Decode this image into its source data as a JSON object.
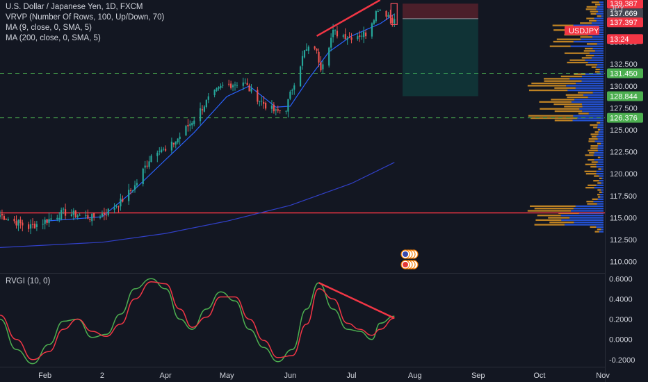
{
  "header": {
    "title": "U.S. Dollar / Japanese Yen, 1D, FXCM",
    "indicators": [
      "VRVP (Number Of Rows, 100, Up/Down, 70)",
      "MA (9, close, 0, SMA, 5)",
      "MA (200, close, 0, SMA, 5)"
    ],
    "oscillator": "RVGI (10, 0)",
    "currency": "JPY"
  },
  "colors": {
    "background": "#131722",
    "up_candle": "#26a69a",
    "down_candle": "#ef5350",
    "ma9": "#2962ff",
    "ma200": "#3140c8",
    "support": "#4caf50",
    "resistance": "#f23645",
    "rvgi": "#4caf50",
    "rvgi_signal": "#f23645",
    "volume_up": "#2962ff",
    "volume_down": "#f9a825"
  },
  "badges": [
    {
      "label": "139.387",
      "color": "#f23645"
    },
    {
      "label": "137.669",
      "color": "#434651"
    },
    {
      "label": "137.397",
      "color": "#f23645"
    },
    {
      "label": "USDJPY",
      "color": "#f23645"
    },
    {
      "label": "13:24",
      "color": "#f23645"
    },
    {
      "label": "131.450",
      "color": "#4caf50"
    },
    {
      "label": "128.844",
      "color": "#4caf50"
    },
    {
      "label": "126.376",
      "color": "#4caf50"
    }
  ],
  "chart_data": [
    {
      "type": "candlestick",
      "title": "U.S. Dollar / Japanese Yen, 1D, FXCM",
      "symbol": "USDJPY",
      "y_ticks": [
        110.0,
        112.5,
        115.0,
        117.5,
        120.0,
        122.5,
        125.0,
        127.5,
        130.0,
        132.5,
        135.0
      ],
      "y_tick_labels": [
        "110.000",
        "112.500",
        "115.000",
        "117.500",
        "120.000",
        "122.500",
        "125.000",
        "127.500",
        "130.000",
        "132.500",
        "135.000"
      ],
      "ylim": [
        108.7,
        139.8
      ],
      "x_tick_labels": [
        "Feb",
        "2",
        "Apr",
        "May",
        "Jun",
        "Jul",
        "Aug",
        "Sep",
        "Oct",
        "Nov"
      ],
      "x_tick_dates": [
        "2022-02-01",
        "2022-03-01",
        "2022-04-01",
        "2022-05-01",
        "2022-06-01",
        "2022-07-01",
        "2022-08-01",
        "2022-09-01",
        "2022-10-01",
        "2022-11-01"
      ],
      "x_range": [
        "2022-01-10",
        "2022-11-02"
      ],
      "close_anchors": [
        {
          "date": "2022-01-10",
          "close": 115.3
        },
        {
          "date": "2022-01-24",
          "close": 113.9
        },
        {
          "date": "2022-02-02",
          "close": 114.7
        },
        {
          "date": "2022-02-10",
          "close": 115.6
        },
        {
          "date": "2022-02-24",
          "close": 115.0
        },
        {
          "date": "2022-03-03",
          "close": 115.6
        },
        {
          "date": "2022-03-10",
          "close": 116.8
        },
        {
          "date": "2022-03-17",
          "close": 118.6
        },
        {
          "date": "2022-03-25",
          "close": 122.1
        },
        {
          "date": "2022-03-29",
          "close": 123.0
        },
        {
          "date": "2022-04-01",
          "close": 122.5
        },
        {
          "date": "2022-04-07",
          "close": 124.0
        },
        {
          "date": "2022-04-15",
          "close": 126.3
        },
        {
          "date": "2022-04-22",
          "close": 128.5
        },
        {
          "date": "2022-04-29",
          "close": 130.0
        },
        {
          "date": "2022-05-09",
          "close": 130.5
        },
        {
          "date": "2022-05-13",
          "close": 129.3
        },
        {
          "date": "2022-05-20",
          "close": 127.8
        },
        {
          "date": "2022-05-25",
          "close": 127.0
        },
        {
          "date": "2022-05-30",
          "close": 127.5
        },
        {
          "date": "2022-06-03",
          "close": 130.5
        },
        {
          "date": "2022-06-08",
          "close": 133.9
        },
        {
          "date": "2022-06-13",
          "close": 134.5
        },
        {
          "date": "2022-06-16",
          "close": 132.2
        },
        {
          "date": "2022-06-22",
          "close": 136.1
        },
        {
          "date": "2022-06-30",
          "close": 135.6
        },
        {
          "date": "2022-07-08",
          "close": 136.0
        },
        {
          "date": "2022-07-14",
          "close": 138.9
        },
        {
          "date": "2022-07-19",
          "close": 138.1
        },
        {
          "date": "2022-07-22",
          "close": 137.4
        }
      ],
      "series": [
        {
          "name": "MA (9, close, 0, SMA, 5)",
          "points": [
            [
              "2022-02-01",
              114.6
            ],
            [
              "2022-03-01",
              115.1
            ],
            [
              "2022-03-15",
              117.8
            ],
            [
              "2022-04-01",
              121.6
            ],
            [
              "2022-04-15",
              124.7
            ],
            [
              "2022-05-01",
              128.8
            ],
            [
              "2022-05-12",
              130.0
            ],
            [
              "2022-05-25",
              127.6
            ],
            [
              "2022-06-01",
              127.7
            ],
            [
              "2022-06-10",
              130.8
            ],
            [
              "2022-06-20",
              133.9
            ],
            [
              "2022-07-01",
              135.7
            ],
            [
              "2022-07-15",
              137.1
            ],
            [
              "2022-07-22",
              138.2
            ]
          ]
        },
        {
          "name": "MA (200, close, 0, SMA, 5)",
          "points": [
            [
              "2022-01-10",
              111.6
            ],
            [
              "2022-03-01",
              112.2
            ],
            [
              "2022-04-01",
              113.2
            ],
            [
              "2022-05-01",
              114.6
            ],
            [
              "2022-06-01",
              116.4
            ],
            [
              "2022-07-01",
              118.9
            ],
            [
              "2022-07-22",
              121.3
            ]
          ]
        }
      ],
      "horizontal_levels": [
        {
          "value": 131.45,
          "style": "dashed"
        },
        {
          "value": 126.376,
          "style": "dashed"
        },
        {
          "value": 115.55,
          "style": "solid"
        }
      ],
      "trendline": {
        "from": [
          "2022-06-14",
          135.7
        ],
        "to": [
          "2022-07-15",
          139.8
        ]
      },
      "position_tool": {
        "start": "2022-07-26",
        "end": "2022-09-01",
        "entry": 137.669,
        "stop": 139.387,
        "target": 128.844
      }
    },
    {
      "type": "line",
      "title": "RVGI (10, 0)",
      "y_ticks": [
        -0.2,
        0.0,
        0.2,
        0.4,
        0.6
      ],
      "y_tick_labels": [
        "-0.2000",
        "0.0000",
        "0.2000",
        "0.4000",
        "0.6000"
      ],
      "ylim": [
        -0.27,
        0.65
      ],
      "series": [
        {
          "name": "RVGI",
          "points": [
            [
              "2022-01-10",
              0.2
            ],
            [
              "2022-01-18",
              -0.1
            ],
            [
              "2022-01-26",
              -0.24
            ],
            [
              "2022-02-03",
              -0.05
            ],
            [
              "2022-02-10",
              0.18
            ],
            [
              "2022-02-17",
              0.2
            ],
            [
              "2022-02-24",
              0.02
            ],
            [
              "2022-03-03",
              0.05
            ],
            [
              "2022-03-10",
              0.25
            ],
            [
              "2022-03-17",
              0.5
            ],
            [
              "2022-03-25",
              0.6
            ],
            [
              "2022-04-01",
              0.5
            ],
            [
              "2022-04-08",
              0.2
            ],
            [
              "2022-04-14",
              0.1
            ],
            [
              "2022-04-21",
              0.3
            ],
            [
              "2022-04-28",
              0.47
            ],
            [
              "2022-05-05",
              0.38
            ],
            [
              "2022-05-12",
              0.1
            ],
            [
              "2022-05-19",
              -0.08
            ],
            [
              "2022-05-26",
              -0.22
            ],
            [
              "2022-06-02",
              -0.1
            ],
            [
              "2022-06-09",
              0.3
            ],
            [
              "2022-06-15",
              0.56
            ],
            [
              "2022-06-22",
              0.3
            ],
            [
              "2022-06-29",
              0.1
            ],
            [
              "2022-07-05",
              0.08
            ],
            [
              "2022-07-11",
              0.0
            ],
            [
              "2022-07-15",
              0.16
            ],
            [
              "2022-07-22",
              0.23
            ]
          ]
        },
        {
          "name": "Signal",
          "points": [
            [
              "2022-01-10",
              0.24
            ],
            [
              "2022-01-18",
              0.0
            ],
            [
              "2022-01-26",
              -0.2
            ],
            [
              "2022-02-03",
              -0.12
            ],
            [
              "2022-02-10",
              0.1
            ],
            [
              "2022-02-17",
              0.2
            ],
            [
              "2022-02-24",
              0.08
            ],
            [
              "2022-03-03",
              0.03
            ],
            [
              "2022-03-10",
              0.15
            ],
            [
              "2022-03-17",
              0.4
            ],
            [
              "2022-03-25",
              0.57
            ],
            [
              "2022-04-01",
              0.55
            ],
            [
              "2022-04-08",
              0.3
            ],
            [
              "2022-04-14",
              0.12
            ],
            [
              "2022-04-21",
              0.22
            ],
            [
              "2022-04-28",
              0.42
            ],
            [
              "2022-05-05",
              0.42
            ],
            [
              "2022-05-12",
              0.2
            ],
            [
              "2022-05-19",
              -0.01
            ],
            [
              "2022-05-26",
              -0.18
            ],
            [
              "2022-06-02",
              -0.16
            ],
            [
              "2022-06-09",
              0.15
            ],
            [
              "2022-06-15",
              0.5
            ],
            [
              "2022-06-22",
              0.4
            ],
            [
              "2022-06-29",
              0.16
            ],
            [
              "2022-07-05",
              0.1
            ],
            [
              "2022-07-11",
              0.04
            ],
            [
              "2022-07-15",
              0.1
            ],
            [
              "2022-07-22",
              0.21
            ]
          ]
        }
      ],
      "trendline": {
        "from": [
          "2022-06-15",
          0.56
        ],
        "to": [
          "2022-07-22",
          0.21
        ]
      }
    }
  ]
}
